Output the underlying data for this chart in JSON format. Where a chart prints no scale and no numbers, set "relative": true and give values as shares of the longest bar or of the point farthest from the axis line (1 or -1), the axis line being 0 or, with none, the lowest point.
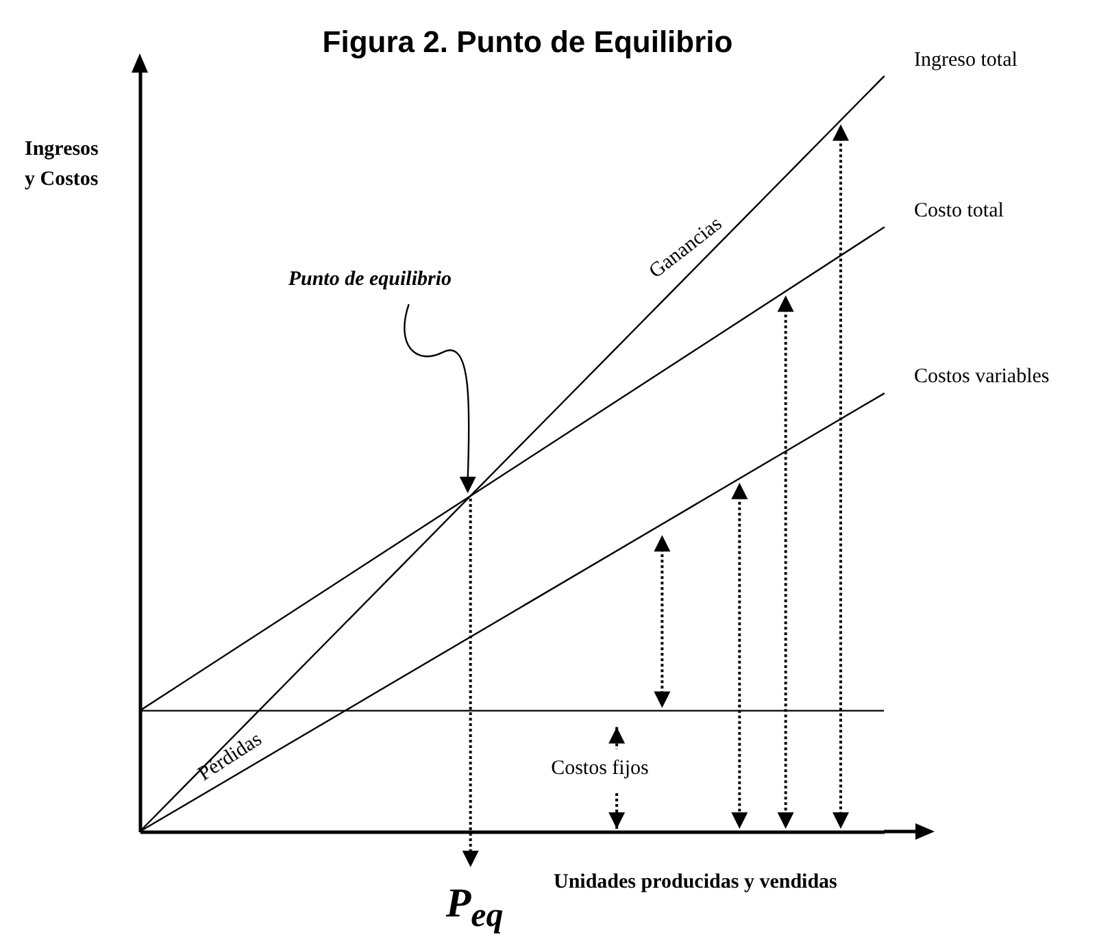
{
  "chart_data": {
    "type": "line",
    "title": "Figura 2. Punto de Equilibrio",
    "xlabel": "Unidades producidas y vendidas",
    "ylabel": "Ingresos y Costos",
    "relative": true,
    "tick_labels": false,
    "categories": [
      null,
      null
    ],
    "series": [
      {
        "name": "Ingreso total",
        "color": "#000000",
        "values": [
          0,
          1
        ]
      },
      {
        "name": "Costo total",
        "color": "#000000",
        "values": [
          0.16,
          0.8
        ]
      },
      {
        "name": "Costos variables",
        "color": "#000000",
        "values": [
          0,
          0.58
        ]
      }
    ],
    "ref_lines": [
      {
        "axis": "y",
        "value": 0.16,
        "color": "#000000"
      }
    ],
    "annotations": [
      "Punto de equilibrio",
      "Ganancias",
      "Pérdidas",
      "Costos fijos",
      "P$_{eq}$"
    ]
  }
}
